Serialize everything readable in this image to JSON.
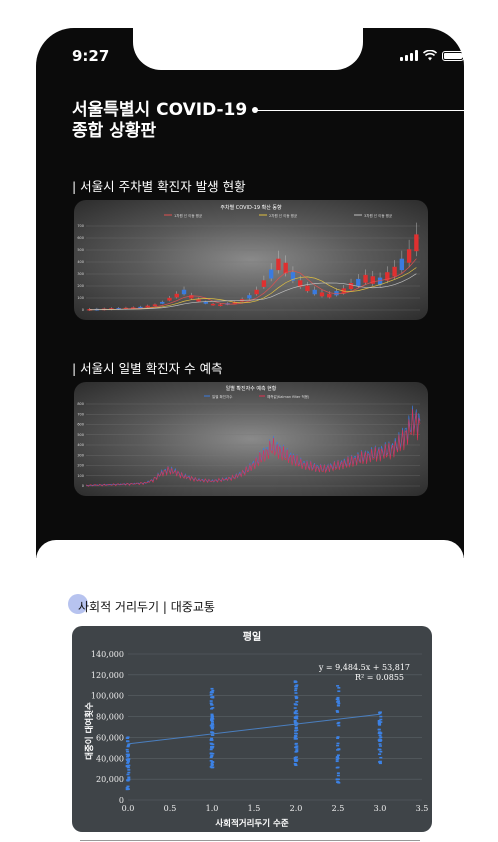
{
  "status": {
    "time": "9:27"
  },
  "header": {
    "title_line1": "서울특별시 COVID-19",
    "title_line2": "종합 상황판"
  },
  "section1": {
    "label": "| 서울시 주차별 확진자 발생 현황"
  },
  "section2": {
    "label": "| 서울시 일별 확진자 수 예측"
  },
  "section3": {
    "label": "사회적 거리두기 | 대중교통"
  },
  "chart_data": [
    {
      "type": "line",
      "title": "주차별 COVID-19 확산 동향",
      "legend": [
        "1차원 선 이동 평균",
        "2차원 선 이동 평균",
        "3차원 선 이동 평균"
      ],
      "legend_placement": "top",
      "ylim": [
        0,
        700
      ],
      "y_ticks": [
        0,
        100,
        200,
        300,
        400,
        500,
        600,
        700
      ],
      "series_name_weekly": "",
      "values": [
        2,
        3,
        5,
        8,
        10,
        12,
        15,
        20,
        30,
        40,
        60,
        90,
        120,
        150,
        110,
        80,
        60,
        45,
        40,
        50,
        60,
        80,
        110,
        150,
        220,
        300,
        380,
        350,
        280,
        220,
        180,
        150,
        130,
        120,
        140,
        160,
        200,
        230,
        260,
        250,
        240,
        280,
        320,
        380,
        450,
        560
      ]
    },
    {
      "type": "line",
      "title": "일별 확진자수 예측 현황",
      "legend": [
        "일별 확진자수",
        "예측값(Kalman filter 적용)"
      ],
      "legend_placement": "top",
      "ylim": [
        0,
        800
      ],
      "y_ticks": [
        0,
        100,
        200,
        300,
        400,
        500,
        600,
        700,
        800
      ],
      "values": [
        5,
        8,
        10,
        12,
        15,
        18,
        20,
        25,
        30,
        60,
        120,
        160,
        140,
        100,
        80,
        60,
        55,
        50,
        60,
        70,
        90,
        130,
        180,
        250,
        320,
        400,
        350,
        300,
        260,
        220,
        200,
        180,
        170,
        190,
        210,
        230,
        260,
        280,
        300,
        320,
        340,
        360,
        420,
        520,
        650,
        600
      ]
    },
    {
      "type": "scatter",
      "title": "평일",
      "xlabel": "사회적거리두기 수준",
      "ylabel": "대중이 대여횟수",
      "xlim": [
        0.0,
        3.5
      ],
      "ylim": [
        0,
        140000
      ],
      "x_ticks": [
        "0.0",
        "0.5",
        "1.0",
        "1.5",
        "2.0",
        "2.5",
        "3.0",
        "3.5"
      ],
      "y_ticks": [
        "0",
        "20,000",
        "40,000",
        "60,000",
        "80,000",
        "100,000",
        "120,000",
        "140,000"
      ],
      "annotation_eq": "y = 9,484.5x + 53,817",
      "annotation_r2": "R² = 0.0855",
      "trend": {
        "slope": 9484.5,
        "intercept": 53817
      },
      "x_levels": [
        0.0,
        1.0,
        2.0,
        2.5,
        3.0
      ],
      "y_ranges": [
        [
          10000,
          60000
        ],
        [
          30000,
          110000
        ],
        [
          30000,
          115000
        ],
        [
          10000,
          110000
        ],
        [
          35000,
          85000
        ]
      ]
    }
  ]
}
